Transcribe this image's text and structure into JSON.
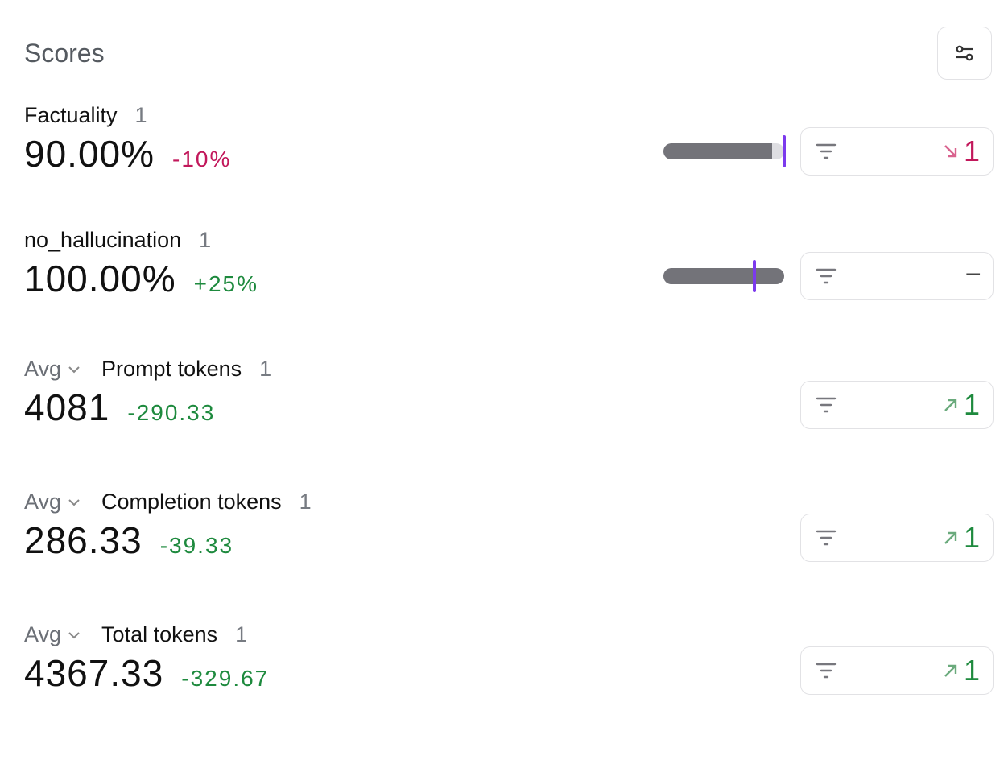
{
  "title": "Scores",
  "colors": {
    "negative": "#c2185b",
    "positive": "#1e8a3e",
    "marker": "#7c3aed",
    "bar": "#737379"
  },
  "scores": [
    {
      "name": "Factuality",
      "count": "1",
      "value": "90.00%",
      "delta": "-10%",
      "trend": "down",
      "bar_fill_percent": 90,
      "comparison_marker_percent": 100,
      "filter_result": "1"
    },
    {
      "name": "no_hallucination",
      "count": "1",
      "value": "100.00%",
      "delta": "+25%",
      "trend": "up",
      "bar_fill_percent": 100,
      "comparison_marker_percent": 75,
      "filter_result": "–"
    },
    {
      "aggregate": "Avg",
      "name": "Prompt tokens",
      "count": "1",
      "value": "4081",
      "delta": "-290.33",
      "trend": "up",
      "filter_result": "1"
    },
    {
      "aggregate": "Avg",
      "name": "Completion tokens",
      "count": "1",
      "value": "286.33",
      "delta": "-39.33",
      "trend": "up",
      "filter_result": "1"
    },
    {
      "aggregate": "Avg",
      "name": "Total tokens",
      "count": "1",
      "value": "4367.33",
      "delta": "-329.67",
      "trend": "up",
      "filter_result": "1"
    }
  ]
}
